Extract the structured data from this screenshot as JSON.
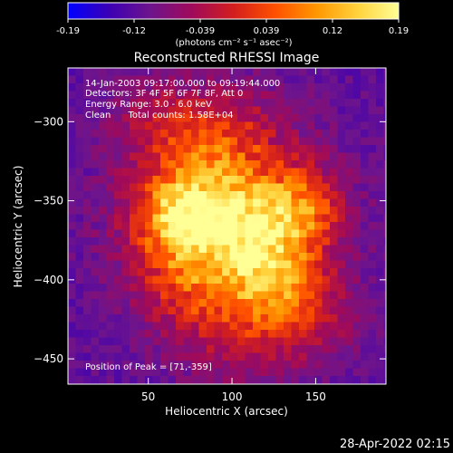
{
  "colorbar": {
    "ticks": [
      "-0.19",
      "-0.12",
      "-0.039",
      "0.039",
      "0.12",
      "0.19"
    ],
    "units": "(photons cm⁻² s⁻¹ asec⁻²)",
    "range": [
      -0.19,
      0.19
    ],
    "colormap": [
      "#0000ff",
      "#3c00b4",
      "#6e148c",
      "#a00a5a",
      "#d21e1e",
      "#ff5000",
      "#ff9600",
      "#ffd23c",
      "#ffff96"
    ]
  },
  "footer": {
    "timestamp": "28-Apr-2022 02:15"
  },
  "chart_data": {
    "type": "heatmap",
    "title": "Reconstructed RHESSI Image",
    "xlabel": "Heliocentric X (arcsec)",
    "ylabel": "Heliocentric Y (arcsec)",
    "xlim": [
      2,
      192
    ],
    "ylim": [
      -466,
      -266
    ],
    "xticks": [
      50,
      100,
      150
    ],
    "yticks": [
      -300,
      -350,
      -400,
      -450
    ],
    "annotations": [
      "14-Jan-2003 09:17:00.000 to 09:19:44.000",
      "Detectors: 3F 4F 5F 6F 7F 8F, Att 0",
      "Energy Range: 3.0 - 6.0 keV",
      "Clean      Total counts: 1.58E+04"
    ],
    "peak_label": "Position of Peak = [71,-359]",
    "peak": [
      71,
      -359
    ],
    "grid": false,
    "sources": [
      {
        "x": 71,
        "y": -359,
        "amp": 0.19,
        "sigma": 18
      },
      {
        "x": 112,
        "y": -368,
        "amp": 0.14,
        "sigma": 20
      },
      {
        "x": 142,
        "y": -355,
        "amp": 0.12,
        "sigma": 16
      },
      {
        "x": 128,
        "y": -400,
        "amp": 0.11,
        "sigma": 18
      },
      {
        "x": 92,
        "y": -318,
        "amp": 0.09,
        "sigma": 24
      },
      {
        "x": 78,
        "y": -398,
        "amp": 0.08,
        "sigma": 22
      },
      {
        "x": 110,
        "y": -430,
        "amp": 0.06,
        "sigma": 24
      },
      {
        "x": 150,
        "y": -425,
        "amp": 0.05,
        "sigma": 20
      },
      {
        "x": 55,
        "y": -300,
        "amp": 0.05,
        "sigma": 20
      }
    ]
  }
}
